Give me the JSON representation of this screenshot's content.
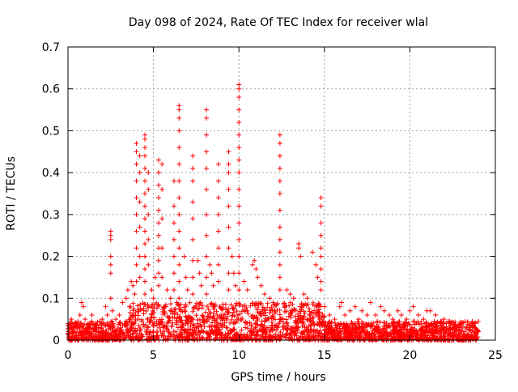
{
  "chart_data": {
    "type": "scatter",
    "title": "Day 098 of 2024, Rate Of TEC Index for receiver wlal",
    "xlabel": "GPS time / hours",
    "ylabel": "ROTI / TECUs",
    "xlim": [
      0,
      25
    ],
    "ylim": [
      0,
      0.7
    ],
    "xticks": [
      "0",
      "5",
      "10",
      "15",
      "20",
      "25"
    ],
    "yticks": [
      "0",
      "0.1",
      "0.2",
      "0.3",
      "0.4",
      "0.5",
      "0.6",
      "0.7"
    ],
    "grid": true,
    "legend": "none",
    "marker": "plus",
    "color": "#ff0000",
    "series": [
      {
        "x_range": [
          0,
          24
        ],
        "values": [
          [
            0.1,
            0.03
          ],
          [
            0.2,
            0.05
          ],
          [
            0.3,
            0.02
          ],
          [
            0.5,
            0.04
          ],
          [
            0.7,
            0.06
          ],
          [
            0.8,
            0.09
          ],
          [
            0.9,
            0.08
          ],
          [
            1.0,
            0.05
          ],
          [
            1.2,
            0.03
          ],
          [
            1.4,
            0.06
          ],
          [
            1.6,
            0.04
          ],
          [
            1.8,
            0.03
          ],
          [
            2.0,
            0.05
          ],
          [
            2.2,
            0.08
          ],
          [
            2.3,
            0.06
          ],
          [
            2.5,
            0.26
          ],
          [
            2.5,
            0.25
          ],
          [
            2.5,
            0.24
          ],
          [
            2.5,
            0.2
          ],
          [
            2.5,
            0.18
          ],
          [
            2.5,
            0.16
          ],
          [
            2.5,
            0.1
          ],
          [
            2.6,
            0.07
          ],
          [
            2.8,
            0.05
          ],
          [
            3.0,
            0.06
          ],
          [
            3.2,
            0.09
          ],
          [
            3.4,
            0.1
          ],
          [
            3.5,
            0.12
          ],
          [
            3.6,
            0.08
          ],
          [
            3.7,
            0.14
          ],
          [
            3.8,
            0.13
          ],
          [
            3.9,
            0.11
          ],
          [
            4.0,
            0.47
          ],
          [
            4.0,
            0.45
          ],
          [
            4.0,
            0.42
          ],
          [
            4.0,
            0.38
          ],
          [
            4.0,
            0.34
          ],
          [
            4.0,
            0.3
          ],
          [
            4.0,
            0.26
          ],
          [
            4.0,
            0.22
          ],
          [
            4.0,
            0.18
          ],
          [
            4.0,
            0.14
          ],
          [
            4.2,
            0.44
          ],
          [
            4.2,
            0.4
          ],
          [
            4.2,
            0.33
          ],
          [
            4.2,
            0.27
          ],
          [
            4.2,
            0.2
          ],
          [
            4.2,
            0.15
          ],
          [
            4.5,
            0.49
          ],
          [
            4.5,
            0.48
          ],
          [
            4.5,
            0.46
          ],
          [
            4.5,
            0.44
          ],
          [
            4.5,
            0.41
          ],
          [
            4.5,
            0.38
          ],
          [
            4.5,
            0.35
          ],
          [
            4.5,
            0.32
          ],
          [
            4.5,
            0.29
          ],
          [
            4.5,
            0.26
          ],
          [
            4.5,
            0.23
          ],
          [
            4.5,
            0.2
          ],
          [
            4.5,
            0.17
          ],
          [
            4.5,
            0.14
          ],
          [
            4.5,
            0.11
          ],
          [
            4.7,
            0.4
          ],
          [
            4.7,
            0.36
          ],
          [
            4.7,
            0.3
          ],
          [
            4.7,
            0.24
          ],
          [
            4.7,
            0.18
          ],
          [
            4.9,
            0.12
          ],
          [
            5.0,
            0.1
          ],
          [
            5.1,
            0.15
          ],
          [
            5.3,
            0.43
          ],
          [
            5.3,
            0.4
          ],
          [
            5.3,
            0.37
          ],
          [
            5.3,
            0.34
          ],
          [
            5.3,
            0.31
          ],
          [
            5.3,
            0.28
          ],
          [
            5.3,
            0.25
          ],
          [
            5.3,
            0.22
          ],
          [
            5.3,
            0.19
          ],
          [
            5.3,
            0.16
          ],
          [
            5.3,
            0.13
          ],
          [
            5.5,
            0.42
          ],
          [
            5.5,
            0.36
          ],
          [
            5.5,
            0.29
          ],
          [
            5.5,
            0.22
          ],
          [
            5.5,
            0.15
          ],
          [
            5.8,
            0.12
          ],
          [
            6.0,
            0.1
          ],
          [
            6.2,
            0.38
          ],
          [
            6.2,
            0.32
          ],
          [
            6.2,
            0.28
          ],
          [
            6.2,
            0.24
          ],
          [
            6.2,
            0.2
          ],
          [
            6.2,
            0.16
          ],
          [
            6.2,
            0.12
          ],
          [
            6.5,
            0.56
          ],
          [
            6.5,
            0.55
          ],
          [
            6.5,
            0.53
          ],
          [
            6.5,
            0.5
          ],
          [
            6.5,
            0.46
          ],
          [
            6.5,
            0.42
          ],
          [
            6.5,
            0.38
          ],
          [
            6.5,
            0.34
          ],
          [
            6.5,
            0.3
          ],
          [
            6.5,
            0.26
          ],
          [
            6.5,
            0.22
          ],
          [
            6.5,
            0.18
          ],
          [
            6.5,
            0.14
          ],
          [
            6.5,
            0.1
          ],
          [
            6.8,
            0.2
          ],
          [
            6.9,
            0.15
          ],
          [
            7.0,
            0.12
          ],
          [
            7.3,
            0.44
          ],
          [
            7.3,
            0.41
          ],
          [
            7.3,
            0.38
          ],
          [
            7.3,
            0.33
          ],
          [
            7.3,
            0.29
          ],
          [
            7.3,
            0.24
          ],
          [
            7.3,
            0.19
          ],
          [
            7.3,
            0.15
          ],
          [
            7.3,
            0.11
          ],
          [
            7.6,
            0.19
          ],
          [
            7.7,
            0.16
          ],
          [
            7.8,
            0.13
          ],
          [
            8.1,
            0.55
          ],
          [
            8.1,
            0.53
          ],
          [
            8.1,
            0.49
          ],
          [
            8.1,
            0.45
          ],
          [
            8.1,
            0.41
          ],
          [
            8.1,
            0.36
          ],
          [
            8.1,
            0.3
          ],
          [
            8.1,
            0.25
          ],
          [
            8.1,
            0.2
          ],
          [
            8.1,
            0.15
          ],
          [
            8.1,
            0.11
          ],
          [
            8.3,
            0.18
          ],
          [
            8.4,
            0.16
          ],
          [
            8.5,
            0.13
          ],
          [
            8.8,
            0.42
          ],
          [
            8.8,
            0.38
          ],
          [
            8.8,
            0.34
          ],
          [
            8.8,
            0.3
          ],
          [
            8.8,
            0.26
          ],
          [
            8.8,
            0.22
          ],
          [
            8.8,
            0.18
          ],
          [
            8.8,
            0.14
          ],
          [
            9.4,
            0.45
          ],
          [
            9.4,
            0.42
          ],
          [
            9.4,
            0.4
          ],
          [
            9.4,
            0.36
          ],
          [
            9.4,
            0.32
          ],
          [
            9.4,
            0.27
          ],
          [
            9.4,
            0.22
          ],
          [
            9.4,
            0.16
          ],
          [
            9.4,
            0.12
          ],
          [
            9.6,
            0.2
          ],
          [
            9.7,
            0.16
          ],
          [
            9.8,
            0.13
          ],
          [
            10.0,
            0.61
          ],
          [
            10.0,
            0.6
          ],
          [
            10.0,
            0.58
          ],
          [
            10.0,
            0.55
          ],
          [
            10.0,
            0.52
          ],
          [
            10.0,
            0.49
          ],
          [
            10.0,
            0.46
          ],
          [
            10.0,
            0.43
          ],
          [
            10.0,
            0.4
          ],
          [
            10.0,
            0.36
          ],
          [
            10.0,
            0.32
          ],
          [
            10.0,
            0.28
          ],
          [
            10.0,
            0.24
          ],
          [
            10.0,
            0.2
          ],
          [
            10.0,
            0.16
          ],
          [
            10.0,
            0.12
          ],
          [
            10.3,
            0.14
          ],
          [
            10.5,
            0.12
          ],
          [
            10.8,
            0.18
          ],
          [
            10.9,
            0.19
          ],
          [
            11.0,
            0.17
          ],
          [
            11.1,
            0.15
          ],
          [
            11.3,
            0.13
          ],
          [
            11.5,
            0.11
          ],
          [
            11.8,
            0.1
          ],
          [
            12.0,
            0.09
          ],
          [
            12.4,
            0.49
          ],
          [
            12.4,
            0.47
          ],
          [
            12.4,
            0.44
          ],
          [
            12.4,
            0.41
          ],
          [
            12.4,
            0.38
          ],
          [
            12.4,
            0.35
          ],
          [
            12.4,
            0.31
          ],
          [
            12.4,
            0.27
          ],
          [
            12.4,
            0.24
          ],
          [
            12.4,
            0.21
          ],
          [
            12.4,
            0.18
          ],
          [
            12.4,
            0.15
          ],
          [
            12.4,
            0.12
          ],
          [
            12.8,
            0.12
          ],
          [
            13.0,
            0.11
          ],
          [
            13.2,
            0.1
          ],
          [
            13.5,
            0.23
          ],
          [
            13.5,
            0.22
          ],
          [
            13.6,
            0.2
          ],
          [
            13.8,
            0.11
          ],
          [
            14.0,
            0.1
          ],
          [
            14.3,
            0.21
          ],
          [
            14.5,
            0.18
          ],
          [
            14.6,
            0.15
          ],
          [
            14.8,
            0.34
          ],
          [
            14.8,
            0.32
          ],
          [
            14.8,
            0.28
          ],
          [
            14.8,
            0.25
          ],
          [
            14.8,
            0.22
          ],
          [
            14.8,
            0.2
          ],
          [
            14.8,
            0.17
          ],
          [
            14.8,
            0.14
          ],
          [
            14.8,
            0.12
          ],
          [
            15.0,
            0.08
          ],
          [
            15.3,
            0.06
          ],
          [
            15.6,
            0.05
          ],
          [
            15.9,
            0.08
          ],
          [
            16.0,
            0.09
          ],
          [
            16.2,
            0.06
          ],
          [
            16.5,
            0.07
          ],
          [
            16.8,
            0.08
          ],
          [
            17.0,
            0.05
          ],
          [
            17.2,
            0.07
          ],
          [
            17.5,
            0.06
          ],
          [
            17.7,
            0.09
          ],
          [
            18.0,
            0.06
          ],
          [
            18.3,
            0.08
          ],
          [
            18.5,
            0.07
          ],
          [
            18.8,
            0.06
          ],
          [
            19.0,
            0.05
          ],
          [
            19.3,
            0.07
          ],
          [
            19.5,
            0.06
          ],
          [
            19.8,
            0.05
          ],
          [
            20.0,
            0.07
          ],
          [
            20.2,
            0.08
          ],
          [
            20.5,
            0.06
          ],
          [
            20.8,
            0.05
          ],
          [
            21.0,
            0.07
          ],
          [
            21.2,
            0.07
          ],
          [
            21.5,
            0.06
          ],
          [
            21.8,
            0.04
          ],
          [
            22.0,
            0.05
          ],
          [
            22.3,
            0.04
          ],
          [
            22.6,
            0.03
          ],
          [
            22.9,
            0.03
          ],
          [
            23.2,
            0.02
          ],
          [
            23.5,
            0.03
          ],
          [
            23.8,
            0.04
          ],
          [
            24.0,
            0.02
          ]
        ]
      }
    ]
  }
}
